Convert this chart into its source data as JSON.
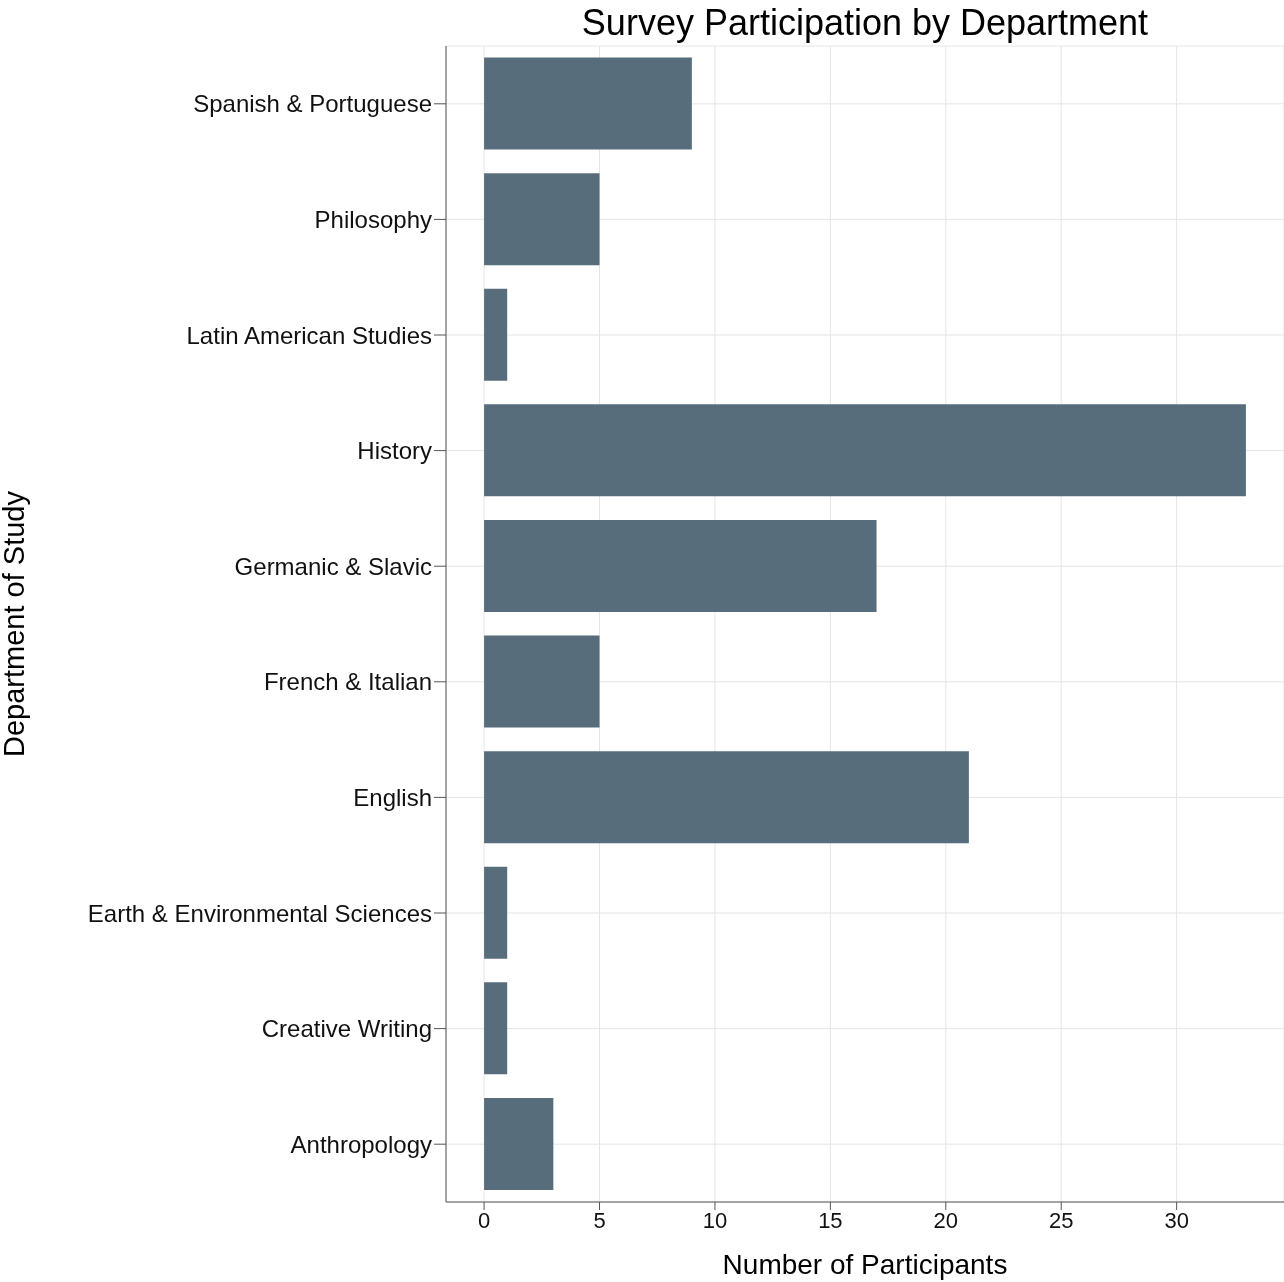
{
  "chart_data": {
    "type": "bar",
    "orientation": "horizontal",
    "title": "Survey Participation by Department",
    "xlabel": "Number of Participants",
    "ylabel": "Department of Study",
    "categories": [
      "Spanish & Portuguese",
      "Philosophy",
      "Latin American Studies",
      "History",
      "Germanic & Slavic",
      "French & Italian",
      "English",
      "Earth & Environmental Sciences",
      "Creative Writing",
      "Anthropology"
    ],
    "values": [
      9,
      5,
      1,
      33,
      17,
      5,
      21,
      1,
      1,
      3
    ],
    "color": "#576d7c",
    "xlim": [
      -1.65,
      34.65
    ],
    "xticks": [
      0,
      5,
      10,
      15,
      20,
      25,
      30
    ],
    "grid": true
  }
}
